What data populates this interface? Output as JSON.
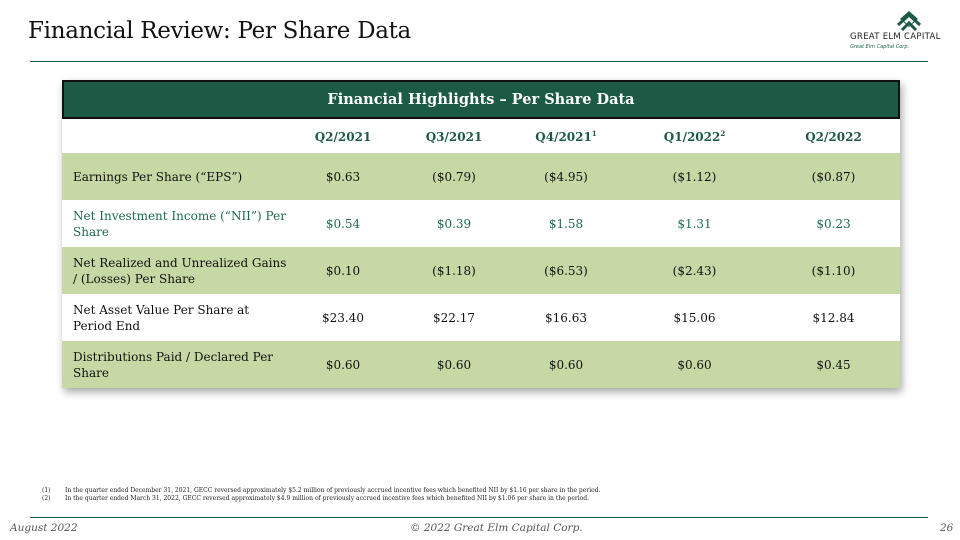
{
  "header": {
    "title": "Financial Review: Per Share Data"
  },
  "logo": {
    "name": "GREAT ELM CAPITAL",
    "subtitle": "Great Elm Capital Corp."
  },
  "table": {
    "banner": "Financial Highlights – Per Share Data",
    "columns": [
      {
        "label": "Q2/2021",
        "sup": ""
      },
      {
        "label": "Q3/2021",
        "sup": ""
      },
      {
        "label": "Q4/2021",
        "sup": "1"
      },
      {
        "label": "Q1/2022",
        "sup": "2"
      },
      {
        "label": "Q2/2022",
        "sup": ""
      }
    ],
    "rows": [
      {
        "label": "Earnings Per Share (“EPS”)",
        "values": [
          "$0.63",
          "($0.79)",
          "($4.95)",
          "($1.12)",
          "($0.87)"
        ]
      },
      {
        "label": "Net Investment Income (“NII”) Per Share",
        "values": [
          "$0.54",
          "$0.39",
          "$1.58",
          "$1.31",
          "$0.23"
        ]
      },
      {
        "label": "Net Realized and Unrealized Gains / (Losses) Per Share",
        "values": [
          "$0.10",
          "($1.18)",
          "($6.53)",
          "($2.43)",
          "($1.10)"
        ]
      },
      {
        "label": "Net Asset Value Per Share at Period End",
        "values": [
          "$23.40",
          "$22.17",
          "$16.63",
          "$15.06",
          "$12.84"
        ]
      },
      {
        "label": "Distributions Paid / Declared Per Share",
        "values": [
          "$0.60",
          "$0.60",
          "$0.60",
          "$0.60",
          "$0.45"
        ]
      }
    ]
  },
  "footnotes": [
    {
      "num": "(1)",
      "text": "In the quarter ended December 31, 2021, GECC reversed approximately $5.2 million of previously accrued incentive fees which benefited NII by $1.16 per share in the period."
    },
    {
      "num": "(2)",
      "text": "In the quarter ended March 31, 2022, GECC reversed approximately $4.9 million of previously accrued incentive fees which benefited NII by $1.06 per share in the period."
    }
  ],
  "footer": {
    "date": "August 2022",
    "copyright": "© 2022 Great Elm Capital Corp.",
    "page": "26"
  },
  "colors": {
    "brand_green": "#1d5a45",
    "row_green": "#c6d8a4"
  }
}
